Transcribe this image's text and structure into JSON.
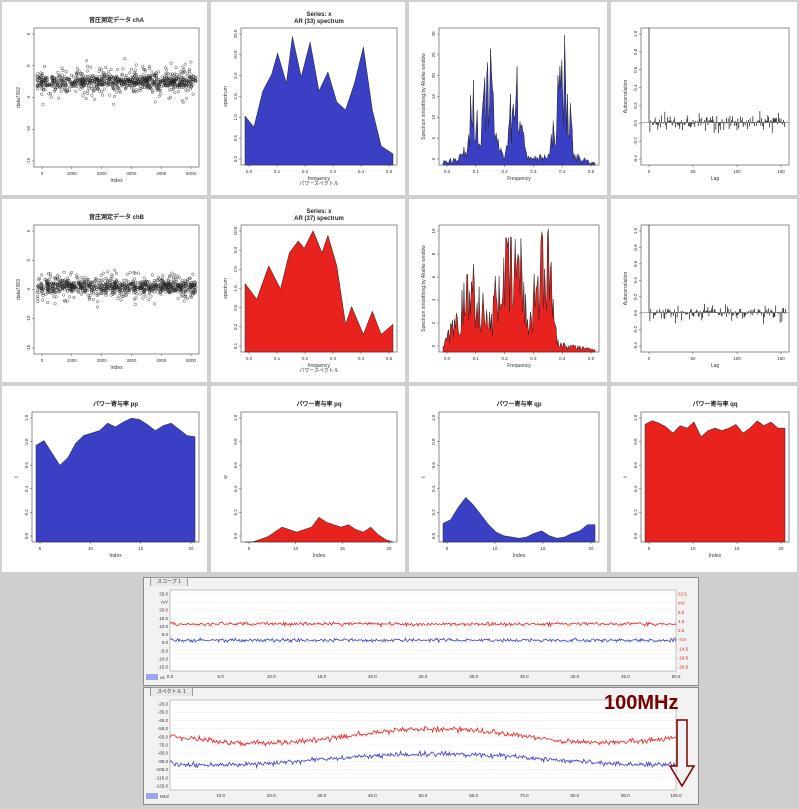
{
  "colors": {
    "blue": "#3a3fc4",
    "red": "#e8221e",
    "black": "#000000"
  },
  "panels": {
    "r1c1": {
      "title": "音圧測定データ chA",
      "xlabel": "Index",
      "ylabel": "data7/8/2",
      "xticks": [
        "0",
        "1000",
        "2000",
        "3000",
        "4000",
        "5000"
      ],
      "yticks": [
        "-15",
        "-10",
        "-5",
        "0",
        "5"
      ]
    },
    "r1c2": {
      "title_line1": "Series: x",
      "title_line2": "AR (33) spectrum",
      "xlabel": "frequency",
      "xlabel2": "パワースペクトル",
      "ylabel": "spectrum",
      "xticks": [
        "0.0",
        "0.1",
        "0.2",
        "0.3",
        "0.4",
        "0.5"
      ],
      "yticks": [
        "0.2",
        "0.5",
        "1.0",
        "2.0",
        "5.0",
        "10.0",
        "20.0"
      ]
    },
    "r1c3": {
      "xlabel": "Frequency",
      "ylabel": "Spectrum smoothing by Akaike window",
      "xticks": [
        "0.0",
        "0.1",
        "0.2",
        "0.3",
        "0.4",
        "0.5"
      ],
      "yticks": [
        "0",
        "5",
        "10",
        "15",
        "20",
        "25",
        "30"
      ]
    },
    "r1c4": {
      "xlabel": "Lag",
      "ylabel": "Autocorrelation",
      "xticks": [
        "0",
        "50",
        "100",
        "150"
      ],
      "yticks": [
        "-0.4",
        "-0.2",
        "0.0",
        "0.2",
        "0.4",
        "0.6",
        "0.8",
        "1.0"
      ]
    },
    "r2c1": {
      "title": "音圧測定データ chB",
      "xlabel": "Index",
      "ylabel": "data7/8/3",
      "xticks": [
        "0",
        "1000",
        "2000",
        "3000",
        "4000",
        "5000"
      ],
      "yticks": [
        "-15",
        "-10",
        "-5",
        "0",
        "5"
      ]
    },
    "r2c2": {
      "title_line1": "Series: x",
      "title_line2": "AR (37) spectrum",
      "xlabel": "frequency",
      "xlabel2": "パワースペクトル",
      "ylabel": "spectrum",
      "xticks": [
        "0.0",
        "0.1",
        "0.2",
        "0.3",
        "0.4",
        "0.5"
      ],
      "yticks": [
        "0.1",
        "0.2",
        "0.5",
        "1.0",
        "2.0",
        "5.0",
        "10.0"
      ]
    },
    "r2c3": {
      "xlabel": "Frequency",
      "ylabel": "Spectrum smoothing by Akaike window",
      "xticks": [
        "0.0",
        "0.1",
        "0.2",
        "0.3",
        "0.4",
        "0.5"
      ],
      "yticks": [
        "0",
        "2",
        "4",
        "6",
        "8",
        "10"
      ]
    },
    "r2c4": {
      "xlabel": "Lag",
      "ylabel": "Autocorrelation",
      "xticks": [
        "0",
        "50",
        "100",
        "150"
      ],
      "yticks": [
        "-0.4",
        "-0.2",
        "0.0",
        "0.2",
        "0.4",
        "0.6",
        "0.8",
        "1.0"
      ]
    },
    "r3c1": {
      "title": "パワー寄与率 pp",
      "xlabel": "Index",
      "ylabel": "t",
      "xticks": [
        "5",
        "10",
        "15",
        "20"
      ],
      "yticks": [
        "0.0",
        "0.2",
        "0.4",
        "0.6",
        "0.8",
        "1.0"
      ]
    },
    "r3c2": {
      "title": "パワー寄与率 pq",
      "xlabel": "Index",
      "ylabel": "w",
      "xticks": [
        "5",
        "10",
        "15",
        "20"
      ],
      "yticks": [
        "0.0",
        "0.2",
        "0.4",
        "0.6",
        "0.8",
        "1.0"
      ]
    },
    "r3c3": {
      "title": "パワー寄与率 qp",
      "xlabel": "Index",
      "ylabel": "t",
      "xticks": [
        "5",
        "10",
        "15",
        "20"
      ],
      "yticks": [
        "0.0",
        "0.2",
        "0.4",
        "0.6",
        "0.8",
        "1.0"
      ]
    },
    "r3c4": {
      "title": "パワー寄与率 qq",
      "xlabel": "Index",
      "ylabel": "t",
      "xticks": [
        "5",
        "10",
        "15",
        "20"
      ],
      "yticks": [
        "0.0",
        "0.2",
        "0.4",
        "0.6",
        "0.8",
        "1.0"
      ]
    }
  },
  "scope1": {
    "tab": "スコープ 1",
    "x_unit": "us",
    "xticks": [
      "0.0",
      "5.0",
      "10.0",
      "15.0",
      "20.0",
      "25.0",
      "30.0",
      "35.0",
      "40.0",
      "45.0",
      "50.0"
    ],
    "left_ticks": [
      "25.0",
      "mV",
      "20.0",
      "15.0",
      "10.0",
      "5.0",
      "0.0",
      "-5.0",
      "-10.0",
      "-15.0"
    ],
    "right_ticks": [
      "22.5",
      "mV",
      "5.5",
      "4.5",
      "3.5",
      "-4.5",
      "-14.5",
      "-24.5",
      "-29.5"
    ]
  },
  "scope2": {
    "tab": "スペクトル 1",
    "x_unit": "MHz",
    "xticks": [
      "10.0",
      "20.0",
      "30.0",
      "40.0",
      "50.0",
      "60.0",
      "70.0",
      "80.0",
      "90.0",
      "100.0"
    ],
    "left_ticks": [
      "-25.0",
      "-35.0",
      "-45.0",
      "-55.0",
      "-65.0",
      "-75.0",
      "-85.0",
      "-95.0",
      "-105.0",
      "-115.0",
      "-125.0"
    ],
    "annotation": "100MHz"
  },
  "chart_data": [
    {
      "type": "scatter",
      "title": "音圧測定データ chA",
      "xlabel": "Index",
      "ylabel": "data7/8/2",
      "xlim": [
        0,
        5000
      ],
      "ylim": [
        -15,
        7
      ],
      "series": [
        {
          "values_description_band": [
            -6,
            3
          ],
          "center": -1.5
        }
      ]
    },
    {
      "type": "area",
      "title": "Series: x AR (33) spectrum",
      "xlabel": "frequency",
      "ylabel": "spectrum",
      "x": [
        0.0,
        0.03,
        0.06,
        0.09,
        0.11,
        0.14,
        0.16,
        0.19,
        0.22,
        0.25,
        0.28,
        0.31,
        0.34,
        0.37,
        0.4,
        0.43,
        0.46,
        0.5
      ],
      "values": [
        1.2,
        0.8,
        3.0,
        5.5,
        12.0,
        4.0,
        22.0,
        5.0,
        18.0,
        3.0,
        6.0,
        2.0,
        1.5,
        4.0,
        15.0,
        1.5,
        0.4,
        0.3
      ],
      "ylim": [
        0.2,
        30
      ]
    },
    {
      "type": "area",
      "title": "",
      "xlabel": "Frequency",
      "ylabel": "Spectrum smoothing by Akaike window",
      "x": [
        0.0,
        0.05,
        0.08,
        0.1,
        0.12,
        0.15,
        0.18,
        0.2,
        0.24,
        0.27,
        0.3,
        0.35,
        0.4,
        0.43,
        0.5
      ],
      "values": [
        1,
        2,
        5,
        25,
        4,
        30,
        6,
        3,
        26,
        4,
        2,
        3,
        32,
        3,
        0.5
      ],
      "ylim": [
        0,
        35
      ]
    },
    {
      "type": "bar",
      "title": "",
      "xlabel": "Lag",
      "ylabel": "Autocorrelation",
      "xlim": [
        0,
        150
      ],
      "ylim": [
        -0.45,
        1.0
      ]
    },
    {
      "type": "scatter",
      "title": "音圧測定データ chB",
      "xlabel": "Index",
      "ylabel": "data7/8/3",
      "xlim": [
        0,
        5000
      ],
      "ylim": [
        -15,
        7
      ],
      "series": [
        {
          "values_description_band": [
            -7,
            0
          ],
          "center": -3.5
        }
      ]
    },
    {
      "type": "area",
      "title": "Series: x AR (37) spectrum",
      "xlabel": "frequency",
      "ylabel": "spectrum",
      "x": [
        0.0,
        0.04,
        0.08,
        0.12,
        0.15,
        0.18,
        0.2,
        0.23,
        0.26,
        0.28,
        0.31,
        0.34,
        0.36,
        0.4,
        0.43,
        0.46,
        0.5
      ],
      "values": [
        1.5,
        0.8,
        3.0,
        1.2,
        5.0,
        8.0,
        6.0,
        12.0,
        5.0,
        10.0,
        3.0,
        0.3,
        0.6,
        0.2,
        0.5,
        0.2,
        0.3
      ],
      "ylim": [
        0.1,
        15
      ]
    },
    {
      "type": "area",
      "title": "",
      "xlabel": "Frequency",
      "ylabel": "Spectrum smoothing by Akaike window",
      "x": [
        0.0,
        0.1,
        0.15,
        0.2,
        0.22,
        0.25,
        0.28,
        0.3,
        0.34,
        0.38,
        0.5
      ],
      "values": [
        0.5,
        8,
        3,
        10,
        9,
        11,
        3,
        7,
        12,
        1,
        0.2
      ],
      "ylim": [
        0,
        12
      ]
    },
    {
      "type": "bar",
      "title": "",
      "xlabel": "Lag",
      "ylabel": "Autocorrelation",
      "xlim": [
        0,
        150
      ],
      "ylim": [
        -0.45,
        1.0
      ]
    },
    {
      "type": "area",
      "title": "パワー寄与率 pp",
      "xlabel": "Index",
      "ylabel": "t",
      "x": [
        1,
        2,
        3,
        4,
        5,
        6,
        7,
        8,
        9,
        10,
        11,
        12,
        13,
        14,
        15,
        16,
        17,
        18,
        19,
        20,
        21
      ],
      "values": [
        0.78,
        0.82,
        0.72,
        0.62,
        0.68,
        0.8,
        0.86,
        0.88,
        0.9,
        0.96,
        0.93,
        0.97,
        1.0,
        0.99,
        0.95,
        0.9,
        0.94,
        0.96,
        0.91,
        0.86,
        0.85
      ],
      "ylim": [
        0,
        1.05
      ]
    },
    {
      "type": "area",
      "title": "パワー寄与率 pq",
      "xlabel": "Index",
      "ylabel": "w",
      "x": [
        1,
        2,
        3,
        4,
        5,
        6,
        7,
        8,
        9,
        10,
        11,
        12,
        13,
        14,
        15,
        16,
        17,
        18,
        19,
        20,
        21
      ],
      "values": [
        0.0,
        0.0,
        0.02,
        0.04,
        0.08,
        0.12,
        0.1,
        0.08,
        0.1,
        0.12,
        0.2,
        0.16,
        0.14,
        0.12,
        0.14,
        0.1,
        0.08,
        0.12,
        0.06,
        0.02,
        0.0
      ],
      "ylim": [
        0,
        1.05
      ]
    },
    {
      "type": "area",
      "title": "パワー寄与率 qp",
      "xlabel": "Index",
      "ylabel": "t",
      "x": [
        1,
        2,
        3,
        4,
        5,
        6,
        7,
        8,
        9,
        10,
        11,
        12,
        13,
        14,
        15,
        16,
        17,
        18,
        19,
        20,
        21
      ],
      "values": [
        0.15,
        0.18,
        0.28,
        0.36,
        0.3,
        0.22,
        0.14,
        0.08,
        0.05,
        0.04,
        0.03,
        0.04,
        0.07,
        0.09,
        0.05,
        0.03,
        0.04,
        0.07,
        0.09,
        0.14,
        0.14
      ],
      "ylim": [
        0,
        1.05
      ]
    },
    {
      "type": "area",
      "title": "パワー寄与率 qq",
      "xlabel": "Index",
      "ylabel": "t",
      "x": [
        1,
        2,
        3,
        4,
        5,
        6,
        7,
        8,
        9,
        10,
        11,
        12,
        13,
        14,
        15,
        16,
        17,
        18,
        19,
        20,
        21
      ],
      "values": [
        0.95,
        0.98,
        0.96,
        0.93,
        0.88,
        0.94,
        0.92,
        0.97,
        0.85,
        0.9,
        0.92,
        0.9,
        0.92,
        0.95,
        0.88,
        0.92,
        0.98,
        0.94,
        0.97,
        0.92,
        0.92
      ],
      "ylim": [
        0,
        1.05
      ]
    }
  ]
}
